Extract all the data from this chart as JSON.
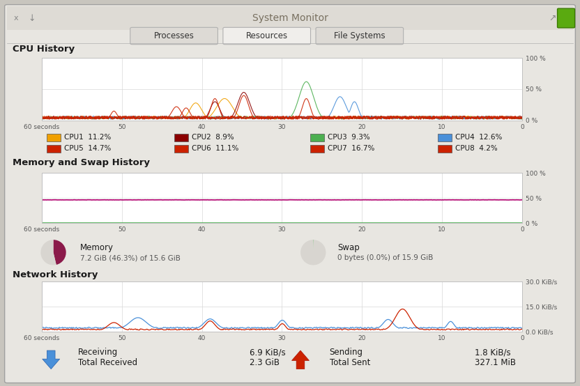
{
  "title": "System Monitor",
  "tabs": [
    "Processes",
    "Resources",
    "File Systems"
  ],
  "active_tab": 1,
  "bg_color": "#c8c5be",
  "window_bg": "#e8e6e1",
  "chart_bg": "#ffffff",
  "chart_border": "#c0c0c0",
  "cpu_section_title": "CPU History",
  "cpu_legend": [
    {
      "label": "CPU1  11.2%",
      "color": "#f0a000"
    },
    {
      "label": "CPU2  8.9%",
      "color": "#8b0000"
    },
    {
      "label": "CPU3  9.3%",
      "color": "#4caf50"
    },
    {
      "label": "CPU4  12.6%",
      "color": "#4a90d9"
    },
    {
      "label": "CPU5  14.7%",
      "color": "#cc2200"
    },
    {
      "label": "CPU6  11.1%",
      "color": "#cc2200"
    },
    {
      "label": "CPU7  16.7%",
      "color": "#cc2200"
    },
    {
      "label": "CPU8  4.2%",
      "color": "#cc2200"
    }
  ],
  "memory_section_title": "Memory and Swap History",
  "memory_line_color": "#b0006e",
  "swap_line_color": "#4caf50",
  "memory_label": "Memory",
  "memory_detail": "7.2 GiB (46.3%) of 15.6 GiB",
  "swap_label": "Swap",
  "swap_detail": "0 bytes (0.0%) of 15.9 GiB",
  "network_section_title": "Network History",
  "network_receive_color": "#4a90d9",
  "network_send_color": "#cc2200",
  "receiving_label": "Receiving",
  "receiving_rate": "6.9 KiB/s",
  "total_received_label": "Total Received",
  "total_received": "2.3 GiB",
  "sending_label": "Sending",
  "sending_rate": "1.8 KiB/s",
  "total_sent_label": "Total Sent",
  "total_sent": "327.1 MiB",
  "grid_color": "#d8d8d8",
  "tick_color": "#555555",
  "section_title_color": "#1a1a1a"
}
